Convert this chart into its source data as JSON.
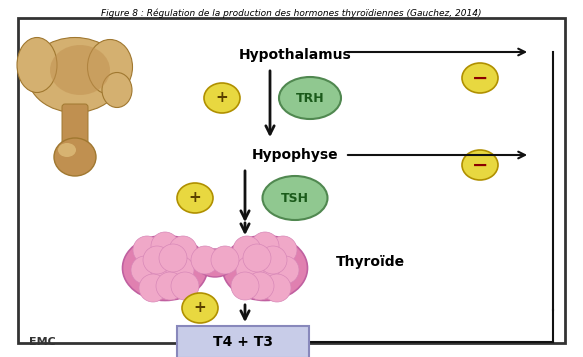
{
  "title": "Figure 8 : Régulation de la production des hormones thyroïdiennes (Gauchez, 2014)",
  "bg_color": "#ffffff",
  "border_color": "#333333",
  "hypothalamus_label": "Hypothalamus",
  "hypophyse_label": "Hypophyse",
  "thyroide_label": "Thyroïde",
  "trh_label": "TRH",
  "tsh_label": "TSH",
  "t4t3_label": "T4 + T3",
  "emc_label": "EMC",
  "plus_color": "#e8d840",
  "minus_color": "#e8d840",
  "trh_circle_color": "#90c890",
  "tsh_circle_color": "#90c890",
  "thyroid_color": "#e080b0",
  "thyroid_bubble_color": "#f0a8c8",
  "t4t3_box_color": "#c8cce8",
  "arrow_color": "#111111",
  "label_fontsize": 10,
  "small_fontsize": 8,
  "title_fontsize": 6.5,
  "brain_color1": "#d4b070",
  "brain_color2": "#c09050",
  "brain_dark": "#a07830"
}
